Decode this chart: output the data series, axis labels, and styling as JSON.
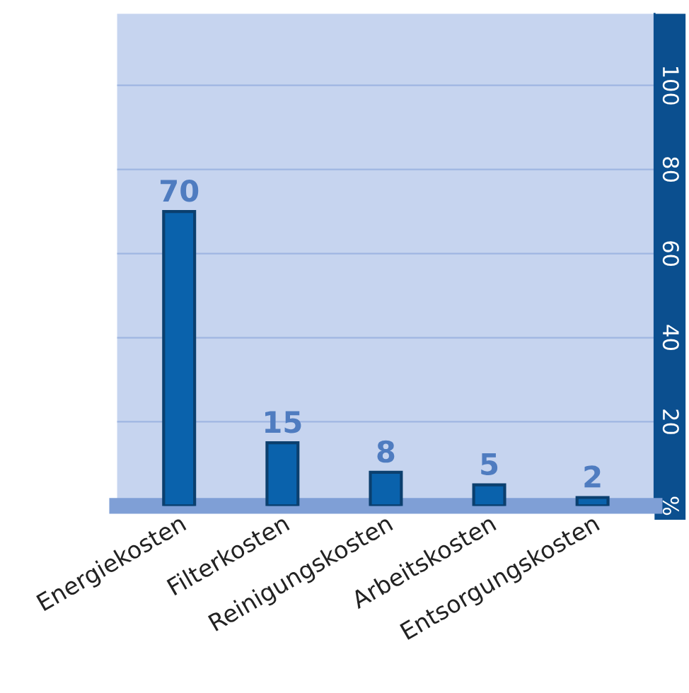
{
  "chart_data": {
    "type": "bar",
    "categories": [
      "Energiekosten",
      "Filterkosten",
      "Reinigungskosten",
      "Arbeitskosten",
      "Entsorgungskosten"
    ],
    "values": [
      70,
      15,
      8,
      5,
      2
    ],
    "color": "#0a62ac",
    "ylim": [
      0,
      117
    ],
    "yticks": [
      {
        "value": 0,
        "label": "%"
      },
      20,
      40,
      60,
      80,
      100
    ],
    "grid": "y",
    "data_labels": true
  }
}
